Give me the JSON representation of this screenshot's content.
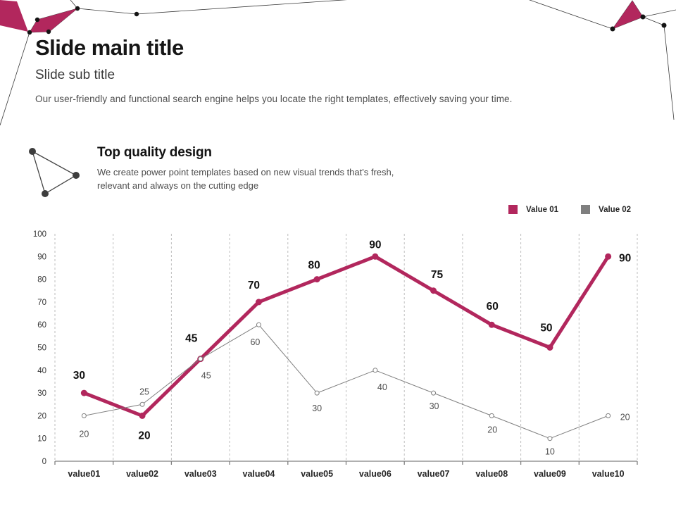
{
  "slide": {
    "title": "Slide main title",
    "subtitle": "Slide sub title",
    "description": "Our user-friendly and functional search engine helps you locate the right templates, effectively saving your time."
  },
  "feature": {
    "heading": "Top quality design",
    "text": "We create power point templates based on new visual trends that's fresh, relevant and always on the cutting edge"
  },
  "colors": {
    "accent": "#b2275d",
    "series2_gray": "#7f7f7f",
    "gridline": "#bdbdbd",
    "axis": "#808080",
    "network_dot": "#141414"
  },
  "chart_data": {
    "type": "line",
    "title": "",
    "xlabel": "",
    "ylabel": "",
    "categories": [
      "value01",
      "value02",
      "value03",
      "value04",
      "value05",
      "value06",
      "value07",
      "value08",
      "value09",
      "value10"
    ],
    "series": [
      {
        "name": "Value 01",
        "color": "#b2275d",
        "values": [
          30,
          20,
          45,
          70,
          80,
          90,
          75,
          60,
          50,
          90
        ],
        "line_width": 5,
        "marker": "filled",
        "marker_radius": 4.5,
        "label_offsets": [
          [
            -7,
            -20
          ],
          [
            3,
            33
          ],
          [
            -13,
            -24
          ],
          [
            -7,
            -19
          ],
          [
            -4,
            -15
          ],
          [
            0,
            -12
          ],
          [
            5,
            -18
          ],
          [
            1,
            -21
          ],
          [
            -5,
            -23
          ],
          [
            24,
            7
          ]
        ]
      },
      {
        "name": "Value 02",
        "color": "#7f7f7f",
        "values": [
          20,
          25,
          45,
          60,
          30,
          40,
          30,
          20,
          10,
          20
        ],
        "line_width": 1,
        "marker": "open",
        "marker_radius": 3,
        "label_offsets": [
          [
            0,
            30
          ],
          [
            3,
            -14
          ],
          [
            8,
            28
          ],
          [
            -5,
            29
          ],
          [
            0,
            26
          ],
          [
            10,
            28
          ],
          [
            1,
            23
          ],
          [
            1,
            24
          ],
          [
            0,
            23
          ],
          [
            24,
            6
          ]
        ]
      }
    ],
    "ylim": [
      0,
      100
    ],
    "yticks": [
      0,
      10,
      20,
      30,
      40,
      50,
      60,
      70,
      80,
      90,
      100
    ],
    "grid": "vertical-dashed",
    "legend_position": "top-right"
  }
}
